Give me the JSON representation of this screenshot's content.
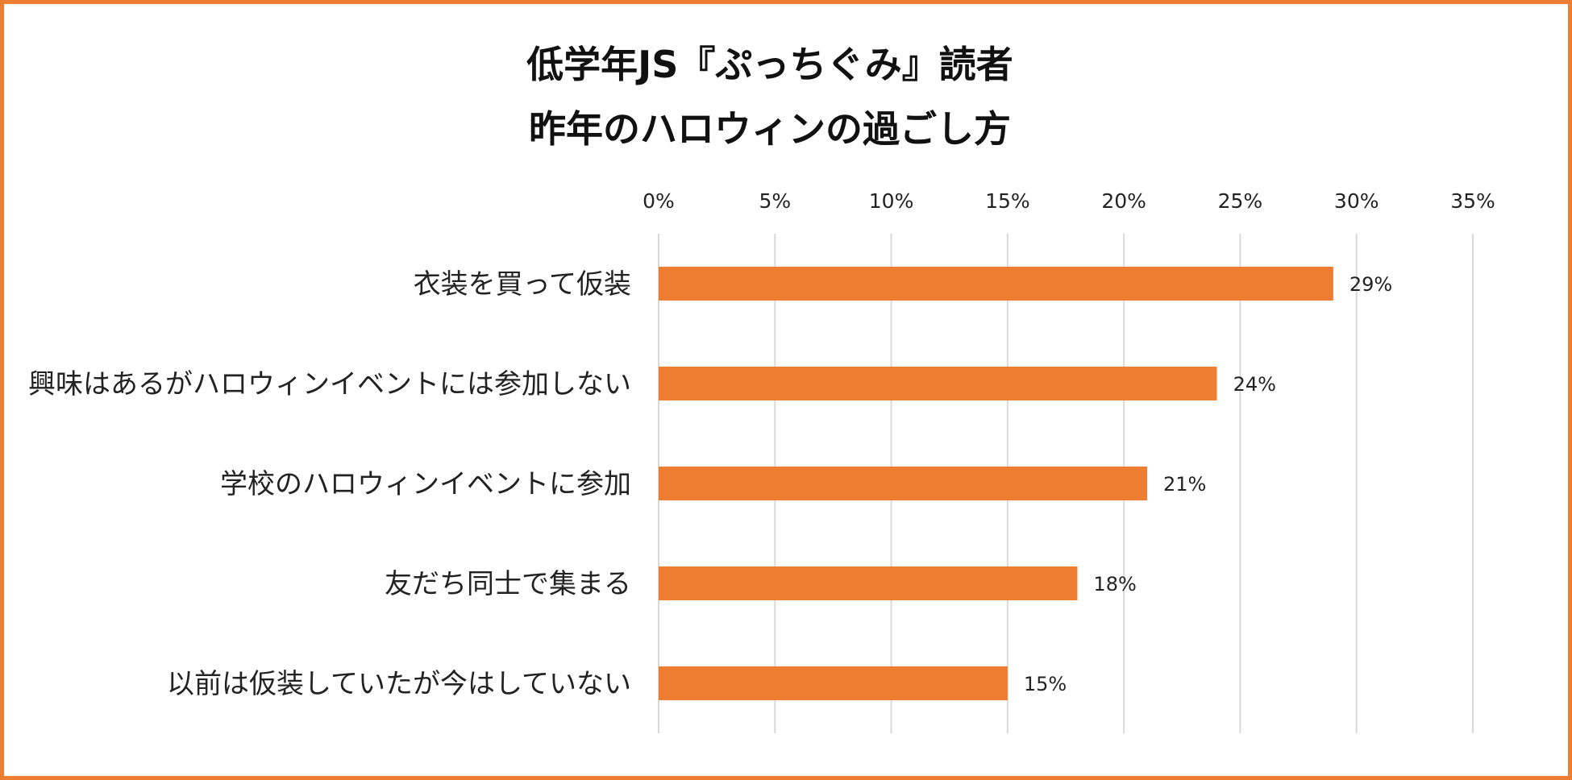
{
  "title_line1": "低学年JS『ぷっちぐみ』読者",
  "title_line2": "昨年のハロウィンの過ごし方",
  "colors": {
    "bar": "#ED7D31",
    "border": "#ED7D31",
    "grid": "#D9D9D9"
  },
  "chart_data": {
    "type": "bar",
    "orientation": "horizontal",
    "title": "低学年JS『ぷっちぐみ』読者 昨年のハロウィンの過ごし方",
    "categories": [
      "衣装を買って仮装",
      "興味はあるがハロウィンイベントには参加しない",
      "学校のハロウィンイベントに参加",
      "友だち同士で集まる",
      "以前は仮装していたが今はしていない"
    ],
    "values": [
      29,
      24,
      21,
      18,
      15
    ],
    "data_labels": [
      "29%",
      "24%",
      "21%",
      "18%",
      "15%"
    ],
    "xlim": [
      0,
      35
    ],
    "x_ticks": [
      "0%",
      "5%",
      "10%",
      "15%",
      "20%",
      "25%",
      "30%",
      "35%"
    ],
    "x_axis_position": "top",
    "grid": true,
    "legend": false
  }
}
